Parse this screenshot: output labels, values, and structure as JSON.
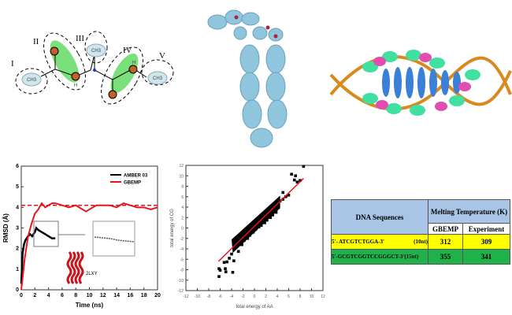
{
  "molecule_diagram": {
    "group_labels": [
      "I",
      "II",
      "III",
      "IV",
      "V"
    ],
    "atom_labels": [
      "CH3",
      "H",
      "CH3",
      "H",
      "CH3"
    ],
    "bead_numbers": [
      "1",
      "2",
      "3",
      "4",
      "5",
      "6",
      "7",
      "8",
      "9",
      "10"
    ]
  },
  "table": {
    "header_col1": "DNA Sequences",
    "header_col2": "Melting Temperature (K)",
    "sub_headers": [
      "GBEMP",
      "Experiment"
    ],
    "rows": [
      {
        "sequence": "5'- ATCGTCTGGA-3'",
        "length": "(10nt)",
        "gbemp": "312",
        "experiment": "309",
        "color": "#ffff00"
      },
      {
        "sequence": "5'-GCGTCGGTCCGGGCT-3'",
        "length": "(15nt)",
        "gbemp": "355",
        "experiment": "341",
        "color": "#1fb24a"
      }
    ],
    "header_color": "#a9c5e6"
  },
  "chart_data": [
    {
      "type": "line",
      "xlabel": "Time (ns)",
      "ylabel": "RMSD (Å)",
      "xlim": [
        0,
        20
      ],
      "ylim": [
        0,
        6
      ],
      "xticks": [
        "0",
        "2",
        "4",
        "6",
        "8",
        "10",
        "12",
        "14",
        "16",
        "18",
        "20"
      ],
      "yticks": [
        "0",
        "1",
        "2",
        "3",
        "4",
        "5",
        "6"
      ],
      "legend_position": "top-right",
      "annotation": "2LXY",
      "series": [
        {
          "name": "AMBER 03",
          "color": "#000000",
          "x": [
            0,
            0.2,
            0.4,
            0.6,
            0.8,
            1.0,
            1.3,
            1.6,
            2.0,
            2.2,
            2.5,
            3.0,
            3.5,
            4.0,
            4.5,
            5.0
          ],
          "y": [
            0.3,
            1.8,
            2.2,
            2.4,
            2.5,
            2.6,
            2.7,
            2.6,
            2.8,
            3.0,
            2.9,
            2.8,
            2.7,
            2.6,
            2.5,
            2.5
          ]
        },
        {
          "name": "GBEMP",
          "color": "#e8141b",
          "x": [
            0,
            0.5,
            1.0,
            1.5,
            2.0,
            2.5,
            3.0,
            3.5,
            4.0,
            4.5,
            5.0,
            6.0,
            7.0,
            8.0,
            9.0,
            9.5,
            10.0,
            11.0,
            12.0,
            13.0,
            14.0,
            15.0,
            16.0,
            17.0,
            18.0,
            19.0,
            20.0
          ],
          "y": [
            0,
            1.5,
            2.6,
            3.2,
            3.7,
            3.9,
            4.2,
            4.0,
            4.1,
            4.2,
            4.2,
            4.1,
            4.0,
            4.1,
            3.9,
            3.8,
            3.9,
            4.1,
            4.1,
            4.1,
            4.0,
            4.2,
            4.1,
            4.0,
            4.0,
            3.9,
            4.0
          ]
        }
      ],
      "reference_line": {
        "y": 4.1,
        "style": "dashed",
        "color": "#e8141b"
      }
    },
    {
      "type": "scatter",
      "xlabel": "total energy of AA",
      "ylabel": "total energy of CG",
      "xlim": [
        -12,
        12
      ],
      "ylim": [
        -12,
        12
      ],
      "xticks": [
        "-12",
        "-10",
        "-8",
        "-6",
        "-4",
        "-2",
        "0",
        "2",
        "4",
        "6",
        "8",
        "10",
        "12"
      ],
      "yticks": [
        "-12",
        "-10",
        "-8",
        "-6",
        "-4",
        "-2",
        "0",
        "2",
        "4",
        "6",
        "8",
        "10",
        "12"
      ],
      "points": [
        [
          -6.2,
          -7.8
        ],
        [
          -6.2,
          -9.3
        ],
        [
          -6,
          -8.1
        ],
        [
          -5.1,
          -7.8
        ],
        [
          -5,
          -8.4
        ],
        [
          -5.3,
          -6.6
        ],
        [
          -4.8,
          -6.5
        ],
        [
          -3.8,
          -8.5
        ],
        [
          -4.4,
          -5.8
        ],
        [
          -4,
          -5
        ],
        [
          -3.6,
          -6.3
        ],
        [
          -3.5,
          -4
        ],
        [
          -3.4,
          -2.5
        ],
        [
          -3,
          -3
        ],
        [
          -2.8,
          -4.5
        ],
        [
          -2.5,
          -2
        ],
        [
          -2.2,
          -3.2
        ],
        [
          -2,
          -1.5
        ],
        [
          -1.8,
          -2.4
        ],
        [
          -1.5,
          -1
        ],
        [
          -1.2,
          -2
        ],
        [
          -1,
          -0.5
        ],
        [
          -0.8,
          -1.4
        ],
        [
          -0.5,
          0
        ],
        [
          -0.2,
          -0.8
        ],
        [
          0,
          0.3
        ],
        [
          0.2,
          -0.3
        ],
        [
          0.5,
          1
        ],
        [
          0.8,
          0.2
        ],
        [
          1,
          1.5
        ],
        [
          1.2,
          0.5
        ],
        [
          1.5,
          2
        ],
        [
          1.8,
          1
        ],
        [
          2,
          2.5
        ],
        [
          2.2,
          1.5
        ],
        [
          2.5,
          3
        ],
        [
          2.8,
          2
        ],
        [
          3,
          3.6
        ],
        [
          3.2,
          2.5
        ],
        [
          3.5,
          4
        ],
        [
          3.8,
          3
        ],
        [
          4,
          4.5
        ],
        [
          4.2,
          4
        ],
        [
          4.5,
          5.2
        ],
        [
          5,
          5.5
        ],
        [
          5,
          6.8
        ],
        [
          5.5,
          6
        ],
        [
          6,
          6.3
        ],
        [
          6.5,
          10.3
        ],
        [
          7,
          9.2
        ],
        [
          7.2,
          10
        ],
        [
          7.5,
          8.8
        ],
        [
          8,
          9.1
        ],
        [
          8.6,
          11.8
        ]
      ],
      "fit_line": {
        "x": [
          -6.3,
          8.6
        ],
        "y": [
          -6.4,
          9.5
        ],
        "color": "#e8141b"
      }
    }
  ]
}
